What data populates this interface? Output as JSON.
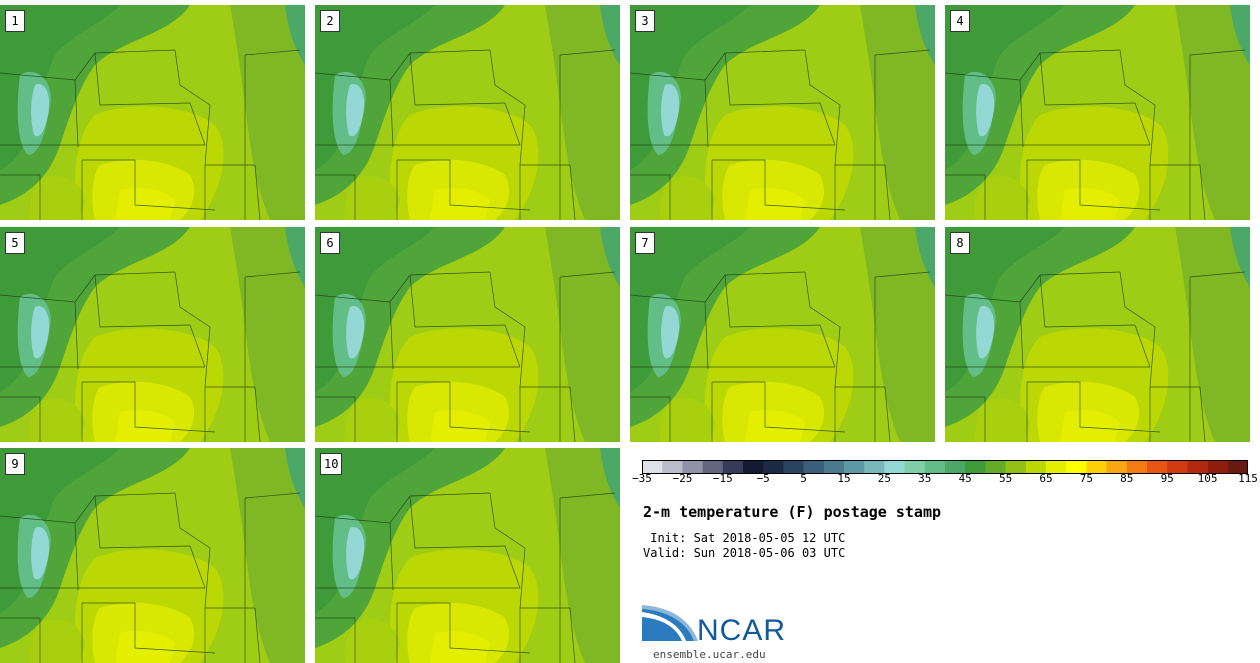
{
  "panels": [
    {
      "label": "1"
    },
    {
      "label": "2"
    },
    {
      "label": "3"
    },
    {
      "label": "4"
    },
    {
      "label": "5"
    },
    {
      "label": "6"
    },
    {
      "label": "7"
    },
    {
      "label": "8"
    },
    {
      "label": "9"
    },
    {
      "label": "10"
    }
  ],
  "title": "2-m temperature (F) postage stamp",
  "init": " Init: Sat 2018-05-05 12 UTC",
  "valid": "Valid: Sun 2018-05-06 03 UTC",
  "logo": {
    "text": "NCAR",
    "url": "ensemble.ucar.edu"
  },
  "chart_data": {
    "type": "heatmap",
    "title": "2-m temperature (F) postage stamp",
    "units": "F",
    "ensemble_members": [
      1,
      2,
      3,
      4,
      5,
      6,
      7,
      8,
      9,
      10
    ],
    "colorbar": {
      "min": -35,
      "max": 120,
      "interval": 5,
      "tick_labels": [
        "-35",
        "-25",
        "-15",
        "-5",
        "5",
        "15",
        "25",
        "35",
        "45",
        "55",
        "65",
        "75",
        "85",
        "95",
        "105",
        "115"
      ],
      "colors": [
        "#dde1e8",
        "#b9bdc9",
        "#8e93a8",
        "#62677f",
        "#363c58",
        "#141a30",
        "#1c2a45",
        "#2a4460",
        "#3a5f7a",
        "#4b7a8f",
        "#5d98a5",
        "#78b8ba",
        "#93d8d4",
        "#7fcfa8",
        "#63bd86",
        "#4ca866",
        "#3f9a3a",
        "#63ac28",
        "#92c016",
        "#bcd804",
        "#e4ee00",
        "#ffff00",
        "#fbcf0a",
        "#f8a712",
        "#f27b14",
        "#e85412",
        "#d23a10",
        "#b42810",
        "#8f1e0e",
        "#6a1a10"
      ]
    },
    "init": "Sat 2018-05-05 12 UTC",
    "valid": "Sun 2018-05-06 03 UTC"
  }
}
